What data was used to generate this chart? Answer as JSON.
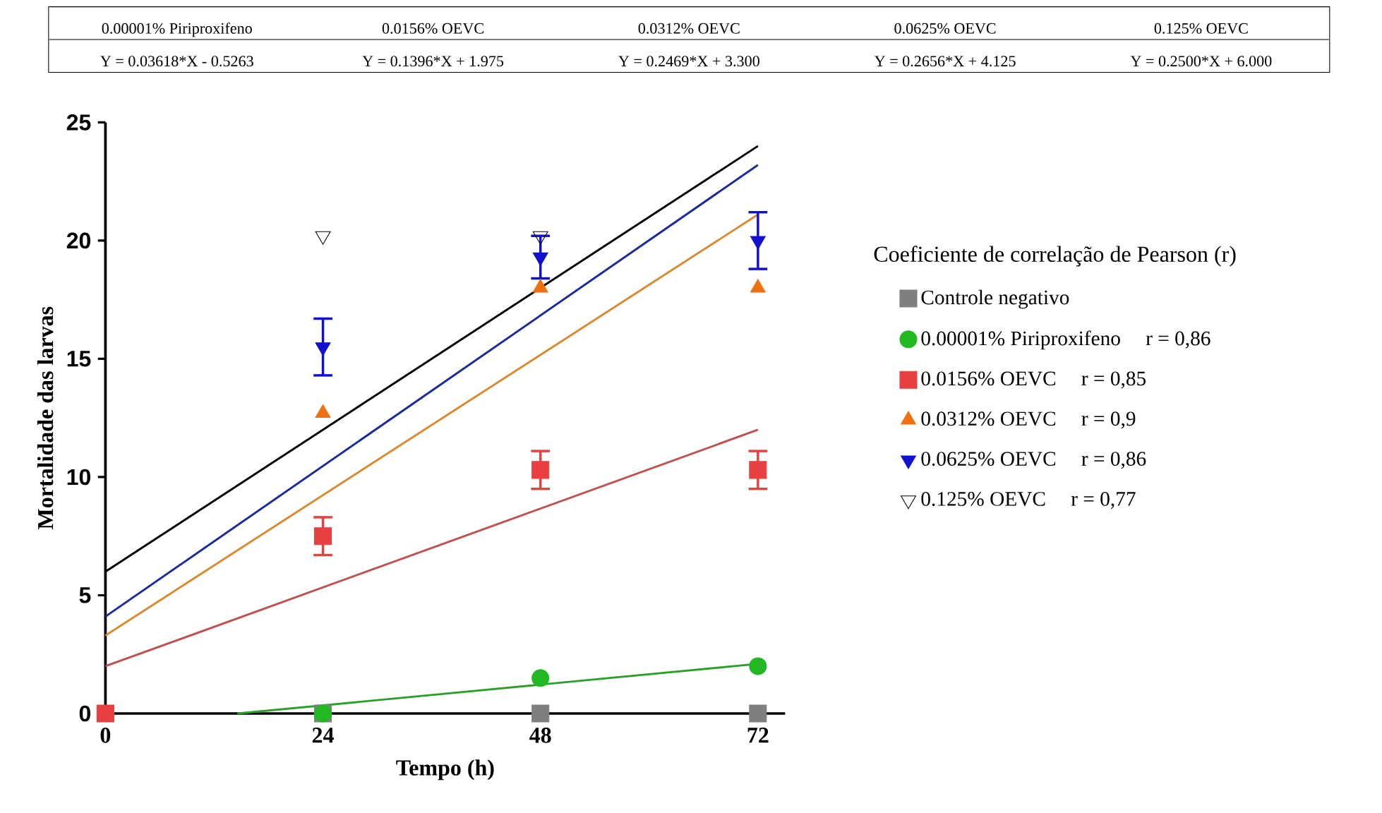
{
  "chart_data": {
    "type": "scatter",
    "xlabel": "Tempo (h)",
    "ylabel": "Mortalidade das larvas",
    "legend_title": "Coeficiente de correlação de Pearson (r)",
    "legend": "right",
    "x": [
      0,
      24,
      48,
      72
    ],
    "xlim": [
      0,
      75
    ],
    "ylim": [
      0,
      25
    ],
    "xticks": [
      0,
      24,
      48,
      72
    ],
    "yticks": [
      0,
      5,
      10,
      15,
      20,
      25
    ],
    "annotations": [
      "0.00001% Piriproxifeno",
      "0.0156% OEVC",
      "0.0312% OEVC",
      "0.0625% OEVC",
      "0.125% OEVC",
      "Y = 0.03618*X - 0.5263",
      "Y = 0.1396*X + 1.975",
      "Y = 0.2469*X + 3.300",
      "Y = 0.2656*X + 4.125",
      "Y = 0.2500*X + 6.000",
      "r = 0,86",
      "r = 0,85",
      "r = 0,9",
      "r = 0,86",
      "r = 0,77"
    ],
    "series": [
      {
        "name": "Controle negativo",
        "type": "scatter",
        "marker": "square",
        "color": "#7f7f7f",
        "values": [
          null,
          0,
          0,
          0
        ]
      },
      {
        "name": "0.00001% Piriproxifeno",
        "type": "scatter",
        "marker": "circle",
        "color": "#22b822",
        "values": [
          null,
          0,
          1.5,
          2
        ]
      },
      {
        "name": "0.0156% OEVC",
        "type": "scatter",
        "marker": "square",
        "color": "#e84040",
        "values": [
          0,
          7.5,
          10.3,
          10.3
        ],
        "errors": [
          null,
          0.8,
          0.8,
          0.8
        ]
      },
      {
        "name": "0.0312% OEVC",
        "type": "scatter",
        "marker": "triangle",
        "color": "#f07010",
        "values": [
          null,
          12.7,
          18,
          18
        ]
      },
      {
        "name": "0.0625% OEVC",
        "type": "scatter",
        "marker": "triangle-down",
        "color": "#1010d0",
        "values": [
          null,
          15.5,
          19.3,
          20
        ],
        "errors": [
          null,
          1.2,
          0.9,
          1.2
        ]
      },
      {
        "name": "0.125% OEVC",
        "type": "scatter",
        "marker": "triangle-down-open",
        "color": "#000000",
        "values": [
          null,
          20.2,
          20.2,
          null
        ]
      },
      {
        "type": "line",
        "color": "#2aa02a",
        "x": [
          14.55,
          72
        ],
        "values": [
          0,
          2.1
        ]
      },
      {
        "type": "line",
        "color": "#c05050",
        "x": [
          0,
          72
        ],
        "values": [
          2,
          12
        ]
      },
      {
        "type": "line",
        "color": "#d98a30",
        "x": [
          0,
          72
        ],
        "values": [
          3.3,
          21.1
        ]
      },
      {
        "type": "line",
        "color": "#1a2a9a",
        "x": [
          0,
          72
        ],
        "values": [
          4.1,
          23.2
        ]
      },
      {
        "type": "line",
        "color": "#000000",
        "x": [
          0,
          72
        ],
        "values": [
          6,
          24
        ]
      }
    ]
  }
}
